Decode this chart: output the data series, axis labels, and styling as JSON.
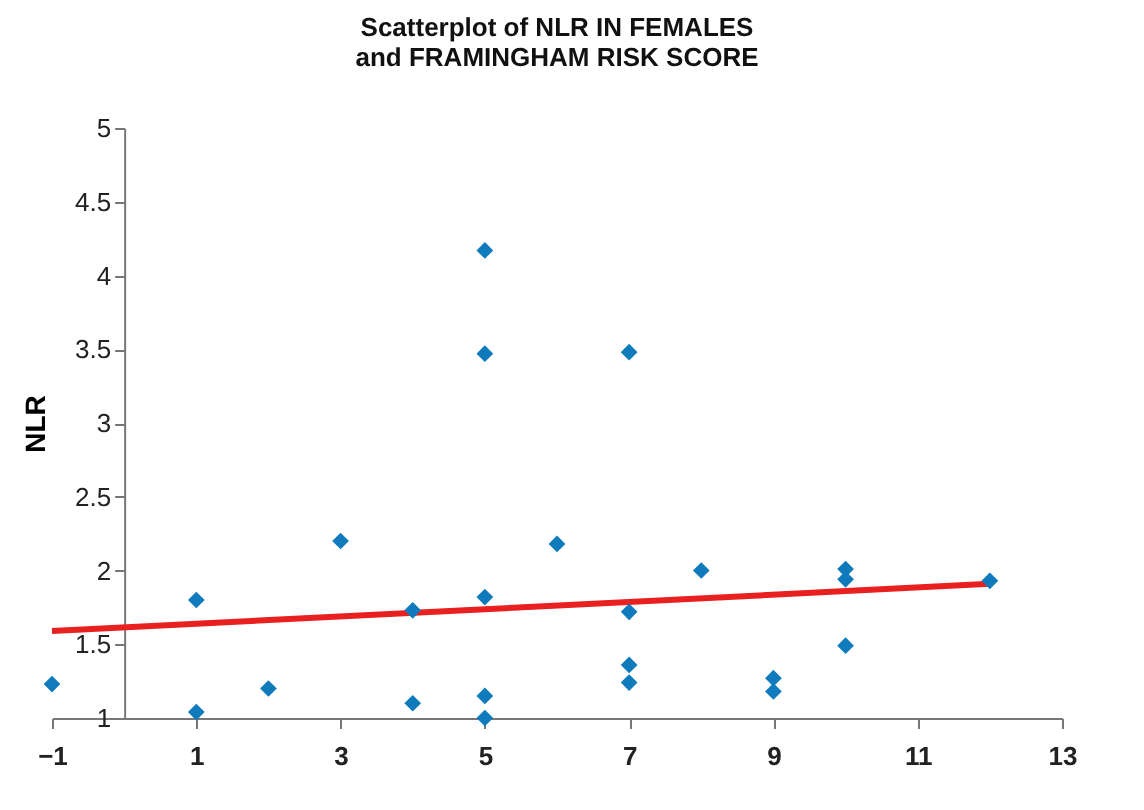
{
  "chart_data": {
    "type": "scatter",
    "title": [
      "Scatterplot of NLR IN FEMALES",
      "and FRAMINGHAM RISK SCORE"
    ],
    "ylabel": "NLR",
    "grid": false,
    "xlim": [
      -1,
      13
    ],
    "xticks": [
      -1,
      1,
      3,
      5,
      7,
      9,
      11,
      13
    ],
    "ylim": [
      1,
      5
    ],
    "yticks": [
      1,
      1.5,
      2,
      2.5,
      3,
      3.5,
      4,
      4.5,
      5
    ],
    "series": [
      {
        "color": "#0f7bbd",
        "marker": "diamond",
        "x": [
          -1,
          1,
          1,
          2,
          3,
          4,
          4,
          5,
          5,
          5,
          5,
          5,
          6,
          7,
          7,
          7,
          7,
          8,
          9,
          9,
          10,
          10,
          10,
          12
        ],
        "values": [
          1.23,
          1.8,
          1.04,
          1.2,
          2.2,
          1.73,
          1.1,
          4.17,
          3.47,
          1.82,
          1.15,
          1.0,
          2.18,
          3.48,
          1.72,
          1.36,
          1.24,
          2.0,
          1.27,
          1.18,
          2.01,
          1.94,
          1.49,
          1.93
        ]
      },
      {
        "type": "line",
        "color": "#e8201f",
        "x": [
          -1,
          12
        ],
        "values": [
          1.59,
          1.91
        ]
      }
    ]
  }
}
